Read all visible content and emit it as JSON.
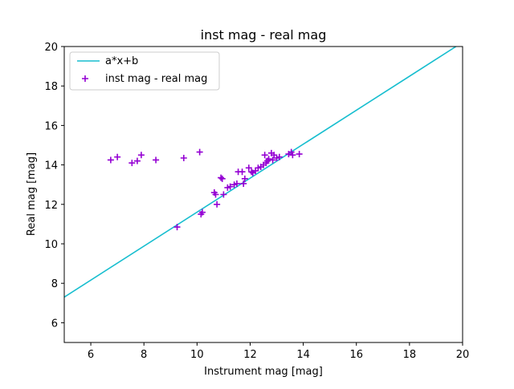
{
  "chart_data": {
    "type": "scatter",
    "title": "inst mag - real mag",
    "xlabel": "Instrument mag [mag]",
    "ylabel": "Real mag [mag]",
    "xlim": [
      5,
      20
    ],
    "ylim": [
      5,
      20
    ],
    "xticks": [
      6,
      8,
      10,
      12,
      14,
      16,
      18,
      20
    ],
    "yticks": [
      6,
      8,
      10,
      12,
      14,
      16,
      18,
      20
    ],
    "legend_position": "top-left",
    "grid": false,
    "series": [
      {
        "name": "a*x+b",
        "type": "line",
        "color": "#17becf",
        "x": [
          5.0,
          19.75
        ],
        "y": [
          7.3,
          20.0
        ]
      },
      {
        "name": "inst mag - real mag",
        "type": "scatter",
        "marker": "plus",
        "color": "#9400d3",
        "x": [
          6.75,
          7.0,
          7.55,
          7.75,
          7.9,
          8.45,
          9.25,
          9.5,
          10.1,
          10.15,
          10.2,
          10.65,
          10.7,
          10.75,
          10.9,
          10.95,
          11.0,
          11.15,
          11.25,
          11.4,
          11.5,
          11.55,
          11.7,
          11.75,
          11.8,
          11.95,
          12.05,
          12.1,
          12.2,
          12.3,
          12.4,
          12.5,
          12.55,
          12.6,
          12.65,
          12.7,
          12.8,
          12.85,
          12.9,
          13.0,
          13.1,
          13.45,
          13.55,
          13.6,
          13.85
        ],
        "y": [
          14.25,
          14.4,
          14.1,
          14.2,
          14.5,
          14.25,
          10.85,
          14.35,
          14.65,
          11.5,
          11.6,
          12.6,
          12.5,
          12.0,
          13.35,
          13.3,
          12.5,
          12.85,
          12.9,
          13.0,
          13.05,
          13.65,
          13.65,
          13.05,
          13.3,
          13.85,
          13.65,
          13.6,
          13.7,
          13.85,
          13.9,
          14.0,
          14.5,
          14.1,
          14.2,
          14.3,
          14.6,
          14.25,
          14.5,
          14.35,
          14.4,
          14.55,
          14.65,
          14.5,
          14.55
        ]
      }
    ]
  }
}
